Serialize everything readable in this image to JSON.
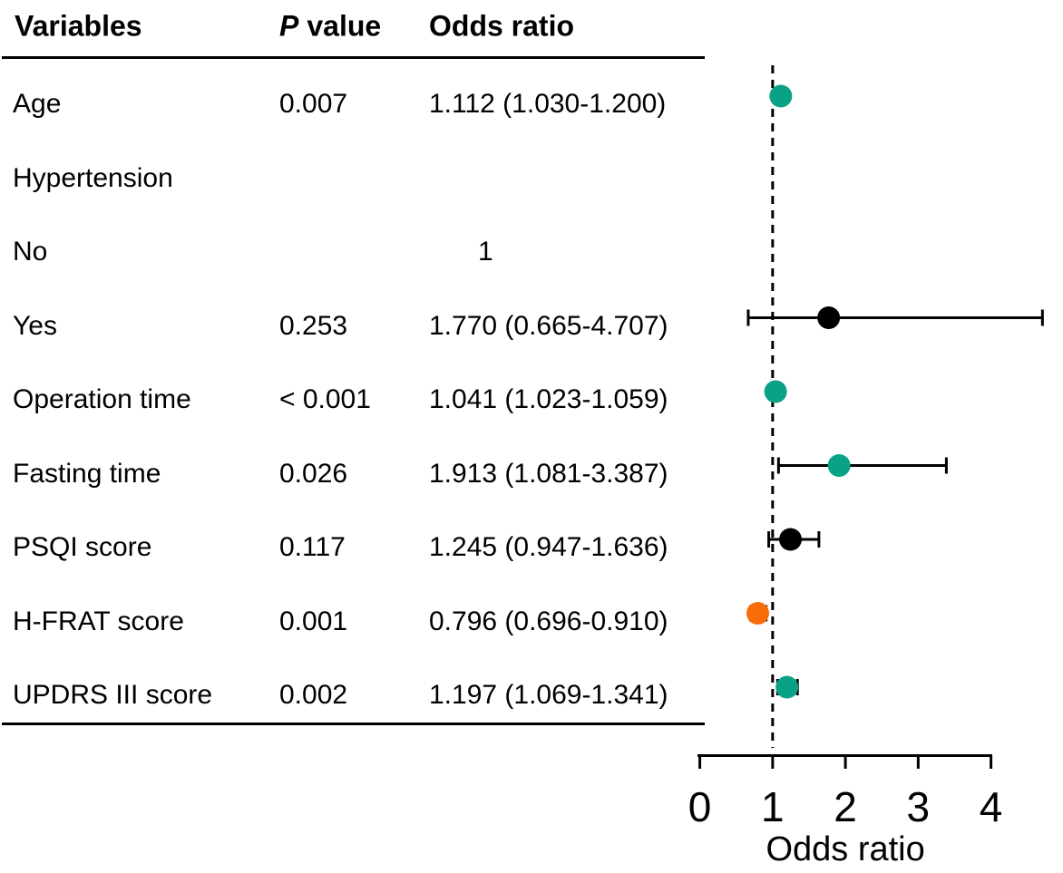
{
  "table": {
    "header": {
      "variables": "Variables",
      "p_italic": "P",
      "p_rest": "value",
      "odds_ratio": "Odds ratio"
    },
    "rows": [
      {
        "variable": "Age",
        "p": "0.007",
        "or": "1.112 (1.030-1.200)",
        "ref": false
      },
      {
        "variable": "Hypertension",
        "p": "",
        "or": "",
        "ref": false
      },
      {
        "variable": "No",
        "p": "",
        "or": "1",
        "ref": true
      },
      {
        "variable": "Yes",
        "p": "0.253",
        "or": "1.770 (0.665-4.707)",
        "ref": false
      },
      {
        "variable": "Operation time",
        "p": "< 0.001",
        "or": "1.041 (1.023-1.059)",
        "ref": false
      },
      {
        "variable": "Fasting time",
        "p": "0.026",
        "or": "1.913 (1.081-3.387)",
        "ref": false
      },
      {
        "variable": "PSQI score",
        "p": "0.117",
        "or": "1.245 (0.947-1.636)",
        "ref": false
      },
      {
        "variable": "H-FRAT score",
        "p": "0.001",
        "or": "0.796 (0.696-0.910)",
        "ref": false
      },
      {
        "variable": "UPDRS III score",
        "p": "0.002",
        "or": "1.197 (1.069-1.341)",
        "ref": false
      }
    ]
  },
  "chart_data": {
    "type": "scatter",
    "subtype": "forest-plot",
    "xlabel": "Odds ratio",
    "xlim": [
      0,
      4.75
    ],
    "x_ticks": [
      0,
      1,
      2,
      3,
      4
    ],
    "tick_labels": [
      "0",
      "1",
      "2",
      "3",
      "4"
    ],
    "reference_line_x": 1,
    "reference_line_style": "dashed",
    "grid": false,
    "legend": false,
    "points": [
      {
        "label": "Age",
        "row": 0,
        "or": 1.112,
        "ci_low": 1.03,
        "ci_high": 1.2,
        "color": "#0AA287"
      },
      {
        "label": "Hypertension: Yes",
        "row": 3,
        "or": 1.77,
        "ci_low": 0.665,
        "ci_high": 4.707,
        "color": "#000000"
      },
      {
        "label": "Operation time",
        "row": 4,
        "or": 1.041,
        "ci_low": 1.023,
        "ci_high": 1.059,
        "color": "#0AA287"
      },
      {
        "label": "Fasting time",
        "row": 5,
        "or": 1.913,
        "ci_low": 1.081,
        "ci_high": 3.387,
        "color": "#0AA287"
      },
      {
        "label": "PSQI score",
        "row": 6,
        "or": 1.245,
        "ci_low": 0.947,
        "ci_high": 1.636,
        "color": "#000000"
      },
      {
        "label": "H-FRAT score",
        "row": 7,
        "or": 0.796,
        "ci_low": 0.696,
        "ci_high": 0.91,
        "color": "#FA6C0A"
      },
      {
        "label": "UPDRS III score",
        "row": 8,
        "or": 1.197,
        "ci_low": 1.069,
        "ci_high": 1.341,
        "color": "#0AA287"
      }
    ]
  },
  "colors": {
    "significant_positive": "#0AA287",
    "significant_negative": "#FA6C0A",
    "not_significant": "#000000",
    "axis": "#000000",
    "background": "#ffffff"
  }
}
